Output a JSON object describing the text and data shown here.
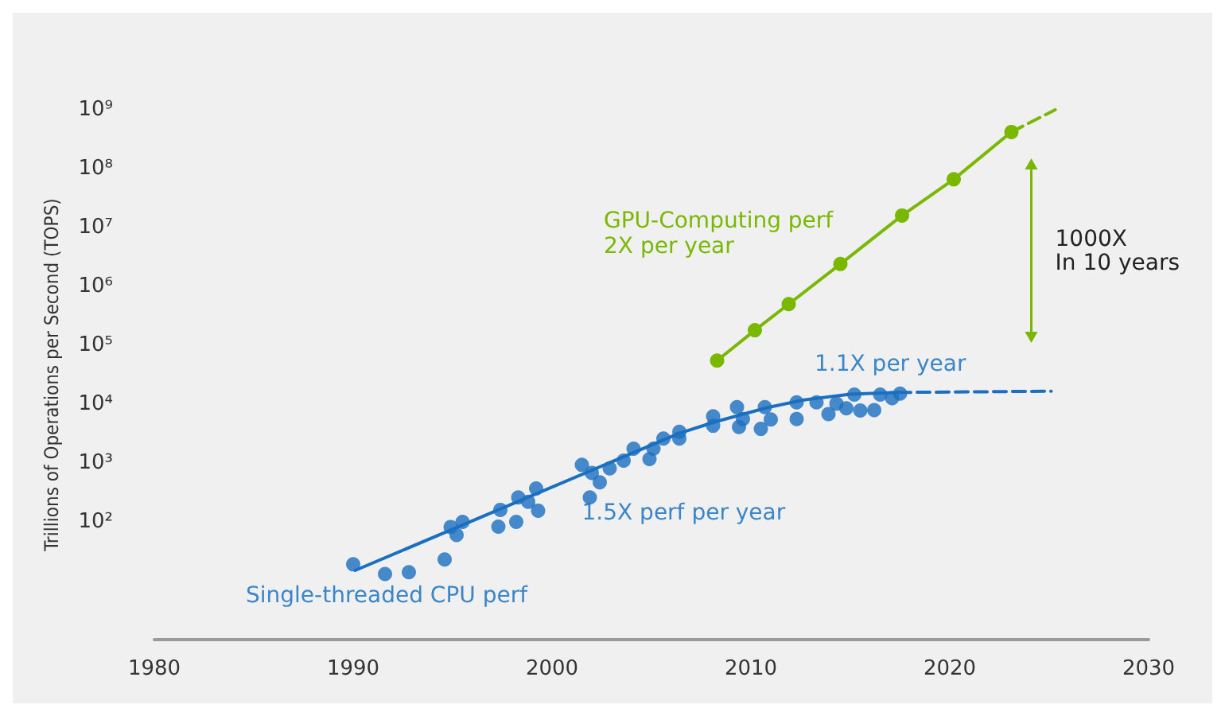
{
  "chart_data": {
    "type": "line",
    "ylabel": "Trillions of Operations per Second (TOPS)",
    "log": "y",
    "grid": false,
    "xlim": [
      1980,
      2030
    ],
    "xticks": [
      1980,
      1990,
      2000,
      2010,
      2020,
      2030
    ],
    "ylim": [
      1,
      1000000000
    ],
    "yticks": [
      {
        "value": 100,
        "label": "10²"
      },
      {
        "value": 1000,
        "label": "10³"
      },
      {
        "value": 10000,
        "label": "10⁴"
      },
      {
        "value": 100000,
        "label": "10⁵"
      },
      {
        "value": 1000000,
        "label": "10⁶"
      },
      {
        "value": 10000000,
        "label": "10⁷"
      },
      {
        "value": 100000000,
        "label": "10⁸"
      },
      {
        "value": 1000000000,
        "label": "10⁹"
      }
    ],
    "series": [
      {
        "color": "#7ab800",
        "marker": "circle",
        "x": [
          2008.3,
          2010.2,
          2011.9,
          2014.5,
          2017.6,
          2020.2,
          2023.1
        ],
        "values": [
          55000,
          180000,
          500000,
          2400000,
          16000000,
          66000000,
          420000000
        ]
      },
      {
        "color": "#7ab800",
        "marker": "none",
        "line_style": "dashed",
        "x": [
          2023.1,
          2025.3
        ],
        "values": [
          420000000,
          1000000000
        ]
      },
      {
        "type": "scatter",
        "color": "#1a6fc0",
        "marker": "circle",
        "x": [
          1990.0,
          1991.6,
          1992.8,
          1994.6,
          1994.9,
          1995.2,
          1995.5,
          1997.3,
          1997.4,
          1998.2,
          1998.3,
          1998.8,
          1999.2,
          1999.3,
          2001.5,
          2001.9,
          2002.0,
          2002.4,
          2002.9,
          2003.6,
          2004.1,
          2004.9,
          2005.1,
          2005.6,
          2006.4,
          2006.4,
          2008.1,
          2008.1,
          2009.3,
          2009.4,
          2009.6,
          2010.5,
          2010.7,
          2011.0,
          2012.3,
          2012.3,
          2013.3,
          2013.9,
          2014.3,
          2014.8,
          2015.2,
          2015.5,
          2016.2,
          2016.5,
          2017.1,
          2017.5
        ],
        "values": [
          19,
          13,
          14,
          23,
          82,
          60,
          100,
          83,
          160,
          100,
          260,
          220,
          370,
          155,
          930,
          260,
          680,
          470,
          810,
          1100,
          1750,
          1170,
          1750,
          2600,
          3400,
          2600,
          6200,
          4300,
          8900,
          4100,
          5600,
          3800,
          8900,
          5500,
          5600,
          10700,
          10700,
          6800,
          10200,
          8500,
          14500,
          7800,
          7900,
          14500,
          12600,
          15100
        ]
      },
      {
        "color": "#1a6fc0",
        "marker": "none",
        "x": [
          1990.1,
          2006.4,
          2008.2,
          2010.8,
          2012.6,
          2015.0,
          2017.4
        ],
        "values": [
          15,
          3200,
          5000,
          8700,
          11700,
          14800,
          15800
        ]
      },
      {
        "color": "#1a6fc0",
        "marker": "none",
        "line_style": "dashed",
        "x": [
          2017.4,
          2025.1
        ],
        "values": [
          15800,
          16600
        ]
      }
    ],
    "annotations": [
      "GPU-Computing perf",
      "2X per year",
      "1000X",
      "In 10 years",
      "1.1X per year",
      "1.5X perf per year",
      "Single-threaded CPU perf"
    ]
  }
}
